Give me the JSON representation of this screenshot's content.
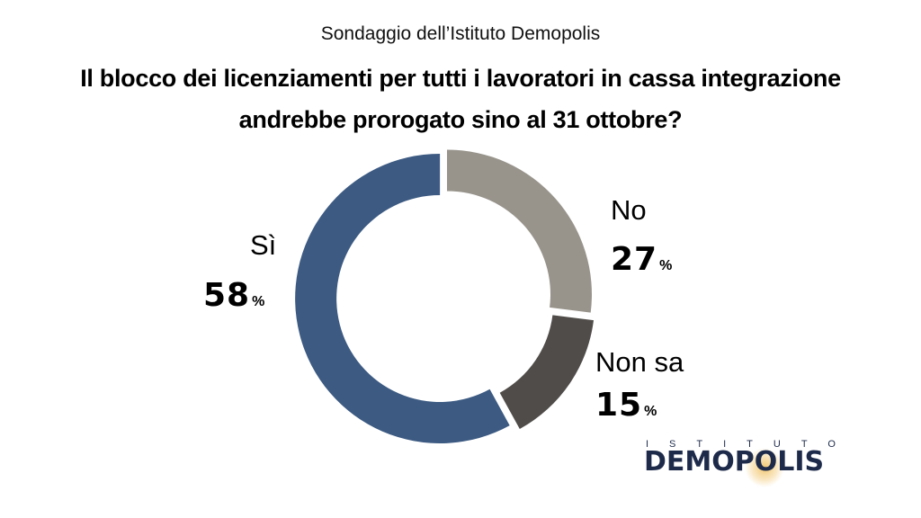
{
  "header": {
    "subtitle": "Sondaggio dell’Istituto Demopolis",
    "title": "Il blocco dei licenziamenti per tutti i lavoratori in cassa integrazione andrebbe prorogato sino al 31 ottobre?"
  },
  "chart_data": {
    "type": "pie",
    "donut": true,
    "categories": [
      "Sì",
      "No",
      "Non sa"
    ],
    "values": [
      58,
      27,
      15
    ],
    "unit": "%",
    "colors": [
      "#3c5a82",
      "#98948c",
      "#4f4c49"
    ]
  },
  "labels": {
    "si_name": "Sì",
    "si_value": "58",
    "no_name": "No",
    "no_value": "27",
    "nonsa_name": "Non sa",
    "nonsa_value": "15",
    "unit": "%"
  },
  "logo": {
    "top": "ISTITUTO",
    "main": "DEMOPOLIS"
  }
}
